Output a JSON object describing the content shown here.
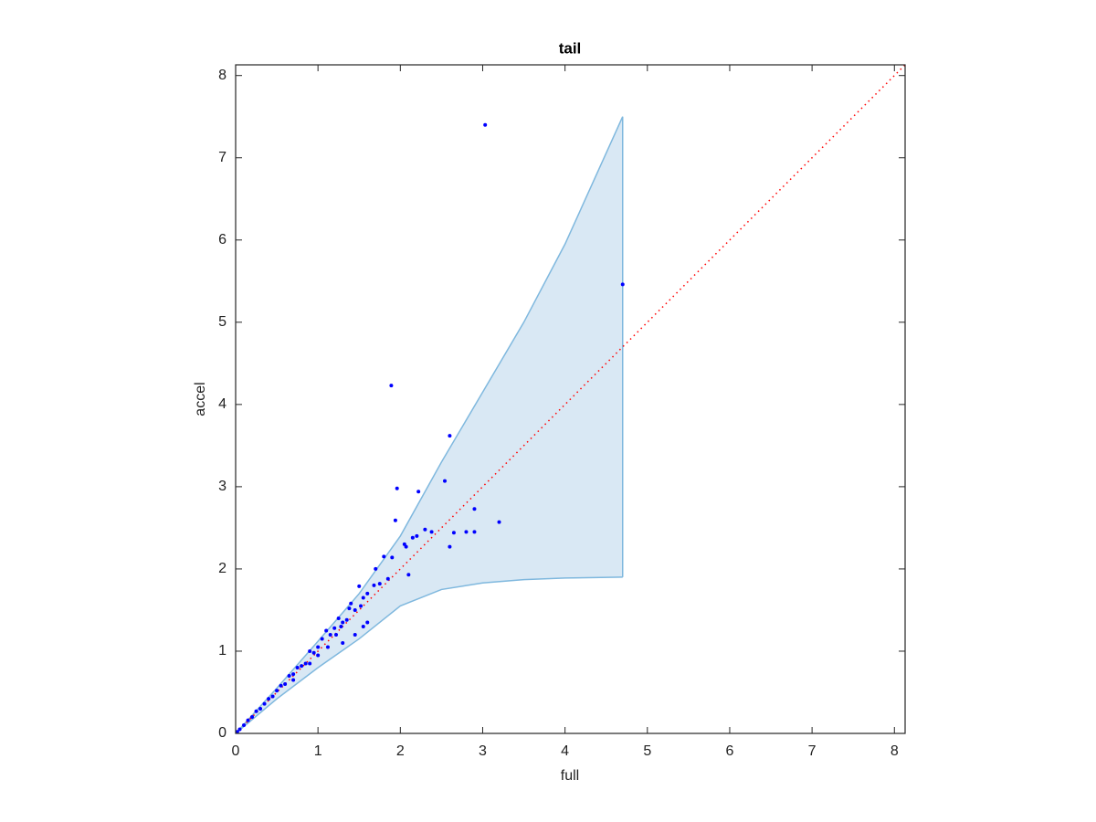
{
  "chart_data": {
    "type": "scatter",
    "title": "tail",
    "x_label": "full",
    "y_label": "accel",
    "xlim": [
      0,
      8.13
    ],
    "ylim": [
      0,
      8.13
    ],
    "xticks": [
      0,
      1,
      2,
      3,
      4,
      5,
      6,
      7,
      8
    ],
    "yticks": [
      0,
      1,
      2,
      3,
      4,
      5,
      6,
      7,
      8
    ],
    "grid": false,
    "band": {
      "color": "#7fb8de",
      "fill": "#d9e8f4",
      "x": [
        0,
        0.5,
        1,
        1.5,
        2,
        2.5,
        3,
        3.5,
        4,
        4.7
      ],
      "upper": [
        0,
        0.55,
        1.12,
        1.7,
        2.4,
        3.3,
        4.15,
        5.0,
        5.95,
        7.5
      ],
      "lower": [
        0,
        0.42,
        0.8,
        1.15,
        1.55,
        1.75,
        1.83,
        1.87,
        1.89,
        1.9
      ]
    },
    "reference_line": {
      "color": "#ff0000",
      "x": [
        0,
        8.13
      ],
      "y": [
        0,
        8.13
      ]
    },
    "series": [
      {
        "color": "#0000ff",
        "x": [
          3.03,
          4.7,
          1.89,
          2.6,
          1.96,
          2.22,
          2.54,
          1.94,
          3.2,
          2.9,
          2.65,
          2.8,
          2.9,
          2.6,
          2.38,
          2.3,
          2.2,
          2.15,
          2.05,
          2.07,
          2.1,
          1.9,
          1.8,
          1.7,
          1.75,
          1.85,
          1.68,
          1.6,
          1.55,
          1.5,
          1.52,
          1.45,
          1.4,
          1.35,
          1.3,
          1.28,
          1.25,
          1.2,
          1.15,
          1.1,
          1.05,
          1.0,
          0.95,
          0.9,
          0.85,
          0.8,
          0.75,
          0.7,
          0.65,
          0.6,
          0.55,
          0.5,
          0.45,
          0.4,
          0.35,
          0.3,
          0.25,
          0.2,
          0.15,
          0.1,
          0.05,
          0.02,
          1.6,
          1.3,
          1.45,
          0.9,
          1.0,
          1.12,
          0.7,
          1.55,
          1.38,
          1.22
        ],
        "y": [
          7.4,
          5.46,
          4.23,
          3.62,
          2.98,
          2.94,
          3.07,
          2.59,
          2.57,
          2.73,
          2.44,
          2.45,
          2.45,
          2.27,
          2.45,
          2.48,
          2.4,
          2.38,
          2.3,
          2.27,
          1.93,
          2.14,
          2.15,
          2.0,
          1.82,
          1.88,
          1.8,
          1.7,
          1.65,
          1.79,
          1.55,
          1.5,
          1.58,
          1.38,
          1.35,
          1.3,
          1.4,
          1.28,
          1.2,
          1.25,
          1.15,
          1.05,
          0.98,
          1.0,
          0.85,
          0.82,
          0.8,
          0.72,
          0.7,
          0.6,
          0.58,
          0.52,
          0.45,
          0.42,
          0.36,
          0.3,
          0.27,
          0.2,
          0.16,
          0.1,
          0.05,
          0.02,
          1.35,
          1.1,
          1.2,
          0.85,
          0.95,
          1.05,
          0.65,
          1.3,
          1.52,
          1.2
        ]
      }
    ]
  }
}
